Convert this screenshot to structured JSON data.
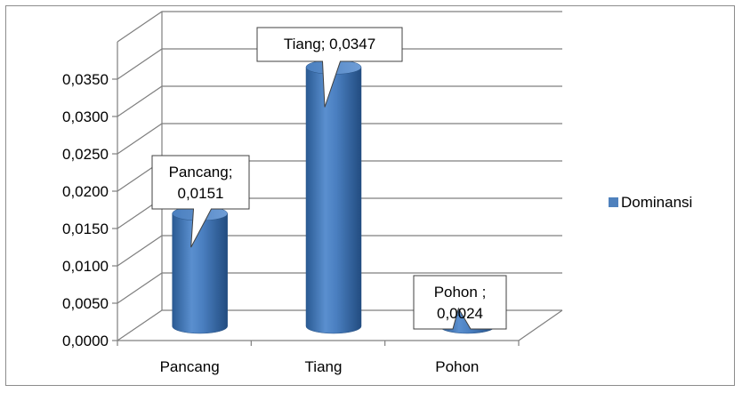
{
  "chart_data": {
    "type": "bar",
    "style": "3d-cylinder",
    "categories": [
      "Pancang",
      "Tiang",
      "Pohon"
    ],
    "series": [
      {
        "name": "Dominansi",
        "color": "#4f81bd",
        "values": [
          0.0151,
          0.0347,
          0.0024
        ]
      }
    ],
    "y_ticks": [
      "0,0000",
      "0,0050",
      "0,0100",
      "0,0150",
      "0,0200",
      "0,0250",
      "0,0300",
      "0,0350"
    ],
    "ylim": [
      0,
      0.035
    ],
    "data_labels": [
      {
        "lines": [
          "Pancang;",
          "0,0151"
        ]
      },
      {
        "lines": [
          "Tiang; 0,0347"
        ]
      },
      {
        "lines": [
          "Pohon ;",
          "0,0024"
        ]
      }
    ],
    "grid": true,
    "legend_position": "right",
    "title": "",
    "xlabel": "",
    "ylabel": ""
  }
}
